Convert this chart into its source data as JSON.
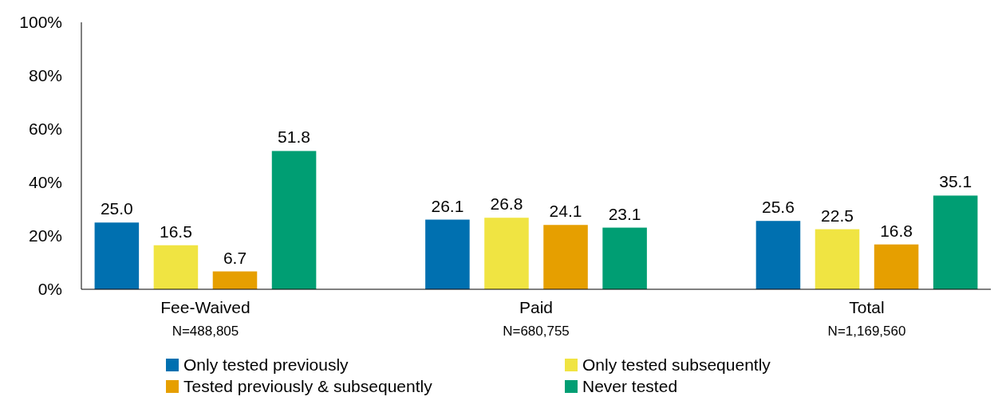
{
  "chart_data": {
    "type": "bar",
    "categories": [
      "Fee-Waived\nN=488,805",
      "Paid\nN=680,755",
      "Total\nN=1,169,560"
    ],
    "series": [
      {
        "name": "Only tested previously",
        "color": "#0070b0",
        "values": [
          25.0,
          26.1,
          25.6
        ],
        "value_labels": [
          "25.0",
          "26.1",
          "25.6"
        ]
      },
      {
        "name": "Only tested subsequently",
        "color": "#f0e442",
        "values": [
          16.5,
          26.8,
          22.5
        ],
        "value_labels": [
          "16.5",
          "26.8",
          "22.5"
        ]
      },
      {
        "name": "Tested previously & subsequently",
        "color": "#e69f00",
        "values": [
          6.7,
          24.1,
          16.8
        ],
        "value_labels": [
          "6.7",
          "24.1",
          "16.8"
        ]
      },
      {
        "name": "Never tested",
        "color": "#009e73",
        "values": [
          51.8,
          23.1,
          35.1
        ],
        "value_labels": [
          "51.8",
          "23.1",
          "35.1"
        ]
      }
    ],
    "ylim": [
      0,
      100
    ],
    "yticks": [
      {
        "value": 0,
        "label": "0%"
      },
      {
        "value": 20,
        "label": "20%"
      },
      {
        "value": 40,
        "label": "40%"
      },
      {
        "value": 60,
        "label": "60%"
      },
      {
        "value": 80,
        "label": "80%"
      },
      {
        "value": 100,
        "label": "100%"
      }
    ],
    "grid": false,
    "legend": "bottom"
  }
}
